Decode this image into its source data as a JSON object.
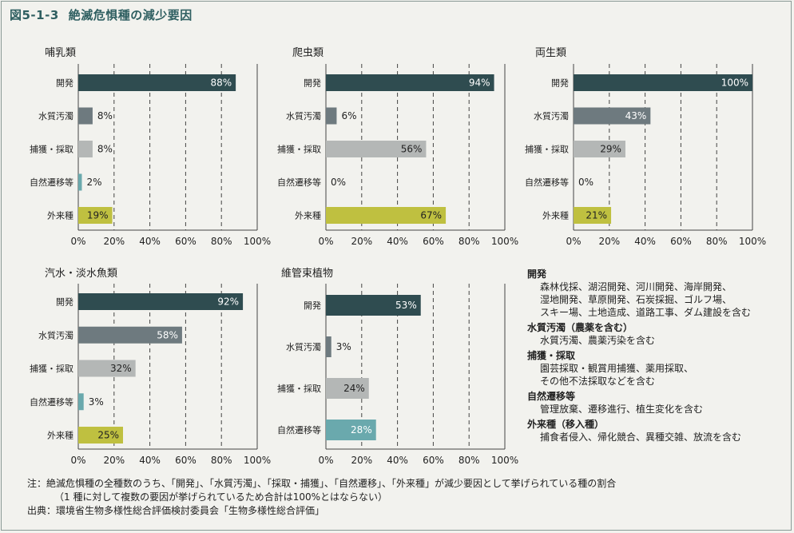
{
  "figure": {
    "number": "図5-1-3",
    "title": "絶滅危惧種の減少要因"
  },
  "chart_data": [
    {
      "type": "bar",
      "orientation": "horizontal",
      "title": "哺乳類",
      "categories": [
        "開発",
        "水質汚濁",
        "捕獲・採取",
        "自然遷移等",
        "外来種"
      ],
      "values": [
        88,
        8,
        8,
        2,
        19
      ],
      "unit": "%",
      "xlim": [
        0,
        100
      ],
      "xticks": [
        "0%",
        "20%",
        "40%",
        "60%",
        "80%",
        "100%"
      ]
    },
    {
      "type": "bar",
      "orientation": "horizontal",
      "title": "爬虫類",
      "categories": [
        "開発",
        "水質汚濁",
        "捕獲・採取",
        "自然遷移等",
        "外来種"
      ],
      "values": [
        94,
        6,
        56,
        0,
        67
      ],
      "unit": "%",
      "xlim": [
        0,
        100
      ],
      "xticks": [
        "0%",
        "20%",
        "40%",
        "60%",
        "80%",
        "100%"
      ]
    },
    {
      "type": "bar",
      "orientation": "horizontal",
      "title": "両生類",
      "categories": [
        "開発",
        "水質汚濁",
        "捕獲・採取",
        "自然遷移等",
        "外来種"
      ],
      "values": [
        100,
        43,
        29,
        0,
        21
      ],
      "unit": "%",
      "xlim": [
        0,
        100
      ],
      "xticks": [
        "0%",
        "20%",
        "40%",
        "60%",
        "80%",
        "100%"
      ]
    },
    {
      "type": "bar",
      "orientation": "horizontal",
      "title": "汽水・淡水魚類",
      "categories": [
        "開発",
        "水質汚濁",
        "捕獲・採取",
        "自然遷移等",
        "外来種"
      ],
      "values": [
        92,
        58,
        32,
        3,
        25
      ],
      "unit": "%",
      "xlim": [
        0,
        100
      ],
      "xticks": [
        "0%",
        "20%",
        "40%",
        "60%",
        "80%",
        "100%"
      ]
    },
    {
      "type": "bar",
      "orientation": "horizontal",
      "title": "維管束植物",
      "categories": [
        "開発",
        "水質汚濁",
        "捕獲・採取",
        "自然遷移等"
      ],
      "values": [
        53,
        3,
        24,
        28
      ],
      "unit": "%",
      "xlim": [
        0,
        100
      ],
      "xticks": [
        "0%",
        "20%",
        "40%",
        "60%",
        "80%",
        "100%"
      ]
    }
  ],
  "category_colors": {
    "開発": "#2f4c50",
    "水質汚濁": "#6e7a7f",
    "捕獲・採取": "#b4b7b6",
    "自然遷移等": "#6aa9ad",
    "外来種": "#bfc040"
  },
  "legend": [
    {
      "heading": "開発",
      "lines": [
        "森林伐採、湖沼開発、河川開発、海岸開発、",
        "湿地開発、草原開発、石炭採掘、ゴルフ場、",
        "スキー場、土地造成、道路工事、ダム建設を含む"
      ]
    },
    {
      "heading": "水質汚濁（農薬を含む）",
      "lines": [
        "水質汚濁、農薬汚染を含む"
      ]
    },
    {
      "heading": "捕獲・採取",
      "lines": [
        "園芸採取・観賞用捕獲、薬用採取、",
        "その他不法採取などを含む"
      ]
    },
    {
      "heading": "自然遷移等",
      "lines": [
        "管理放棄、遷移進行、植生変化を含む"
      ]
    },
    {
      "heading": "外来種（移入種）",
      "lines": [
        "捕食者侵入、帰化競合、異種交雑、放流を含む"
      ]
    }
  ],
  "notes": {
    "note_line1": "注：絶滅危惧種の全種数のうち、「開発」、「水質汚濁」、「採取・捕獲」、「自然遷移」、「外来種」が減少要因として挙げられている種の割合",
    "note_line2": "（1 種に対して複数の要因が挙げられているため合計は100%とはならない）",
    "source": "出典：環境省生物多様性総合評価検討委員会「生物多様性総合評価」"
  }
}
